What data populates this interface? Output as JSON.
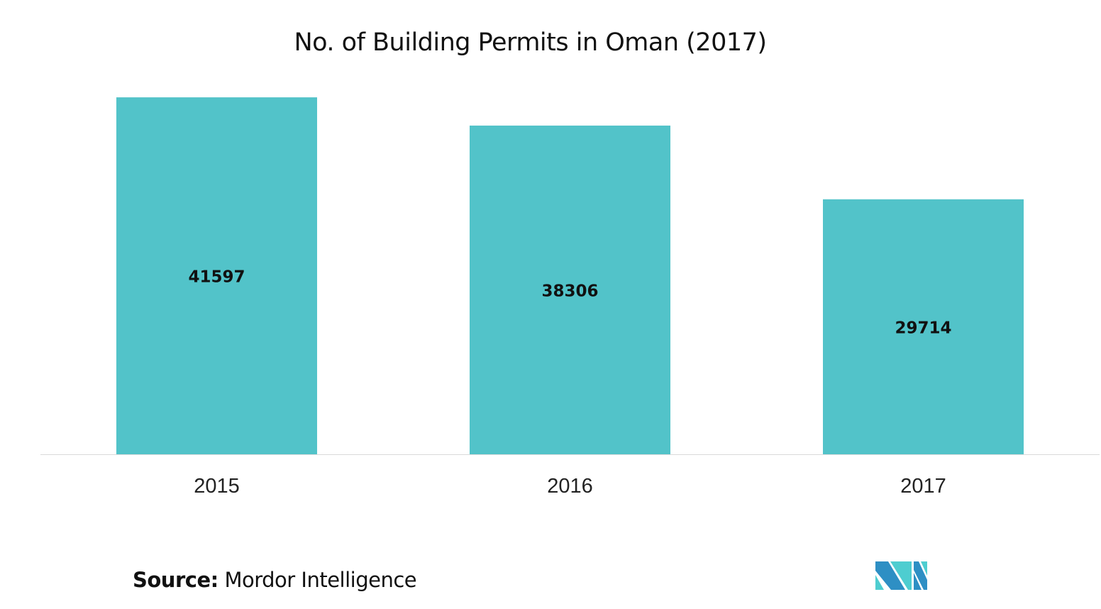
{
  "chart_data": {
    "type": "bar",
    "title": "No. of Building Permits in Oman (2017)",
    "categories": [
      "2015",
      "2016",
      "2017"
    ],
    "values": [
      41597,
      38306,
      29714
    ],
    "data_labels": [
      "41597",
      "38306",
      "29714"
    ],
    "xlabel": "",
    "ylabel": "",
    "ylim": [
      0,
      45000
    ],
    "grid": false,
    "bar_color": "#52c3c9",
    "axis_color": "#d9d9d9"
  },
  "footer": {
    "source_label": "Source:",
    "source_text": "Mordor Intelligence",
    "logo": "Mordor Intelligence logo",
    "logo_colors": [
      "#2e8fc4",
      "#4ecdd0"
    ]
  }
}
